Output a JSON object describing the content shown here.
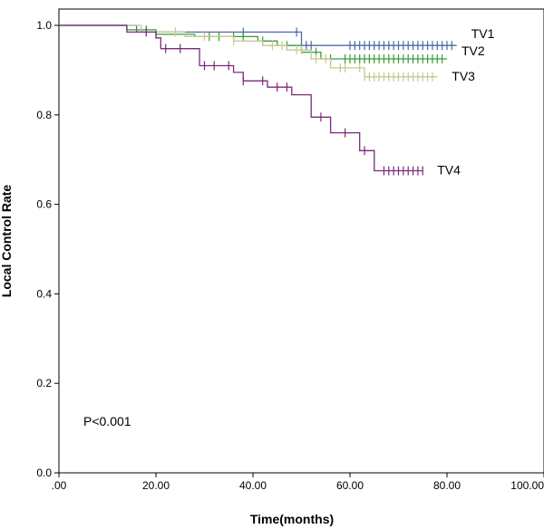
{
  "chart_data": {
    "type": "line",
    "subtype": "kaplan-meier-step",
    "title": "",
    "xlabel": "Time(months)",
    "ylabel": "Local Control Rate",
    "xlim": [
      0,
      100
    ],
    "ylim": [
      0,
      1.0
    ],
    "x_ticks": [
      0,
      20,
      40,
      60,
      80,
      100
    ],
    "x_tick_labels": [
      ".00",
      "20.00",
      "40.00",
      "60.00",
      "80.00",
      "100.00"
    ],
    "y_ticks": [
      0,
      0.2,
      0.4,
      0.6,
      0.8,
      1.0
    ],
    "y_tick_labels": [
      "0.0",
      "0.2",
      "0.4",
      "0.6",
      "0.8",
      "1.0"
    ],
    "grid": false,
    "annotation": "P<0.001",
    "series": [
      {
        "name": "TV1",
        "color": "#4a6aa5",
        "steps": [
          [
            0,
            1.0
          ],
          [
            16,
            1.0
          ],
          [
            16,
            0.985
          ],
          [
            50,
            0.985
          ],
          [
            50,
            0.955
          ],
          [
            82,
            0.955
          ]
        ],
        "censor_x": [
          38,
          49,
          51,
          52,
          60,
          61,
          62,
          63,
          64,
          65,
          66,
          67,
          68,
          69,
          70,
          71,
          72,
          73,
          74,
          75,
          76,
          77,
          78,
          79,
          80,
          81
        ]
      },
      {
        "name": "TV2",
        "color": "#3a9a3a",
        "steps": [
          [
            0,
            1.0
          ],
          [
            14,
            1.0
          ],
          [
            14,
            0.99
          ],
          [
            20,
            0.99
          ],
          [
            20,
            0.98
          ],
          [
            28,
            0.98
          ],
          [
            28,
            0.975
          ],
          [
            41,
            0.975
          ],
          [
            41,
            0.965
          ],
          [
            45,
            0.965
          ],
          [
            45,
            0.955
          ],
          [
            50,
            0.955
          ],
          [
            50,
            0.94
          ],
          [
            54,
            0.94
          ],
          [
            54,
            0.925
          ],
          [
            80,
            0.925
          ]
        ],
        "censor_x": [
          18,
          20,
          31,
          33,
          36,
          38,
          42,
          47,
          53,
          56,
          59,
          60,
          61,
          62,
          63,
          64,
          65,
          66,
          67,
          68,
          69,
          70,
          71,
          72,
          73,
          74,
          75,
          76,
          77,
          78,
          79
        ]
      },
      {
        "name": "TV3",
        "color": "#c8c890",
        "steps": [
          [
            0,
            1.0
          ],
          [
            17,
            1.0
          ],
          [
            17,
            0.985
          ],
          [
            26,
            0.985
          ],
          [
            26,
            0.975
          ],
          [
            36,
            0.975
          ],
          [
            36,
            0.965
          ],
          [
            42,
            0.965
          ],
          [
            42,
            0.955
          ],
          [
            47,
            0.955
          ],
          [
            47,
            0.945
          ],
          [
            52,
            0.945
          ],
          [
            52,
            0.925
          ],
          [
            56,
            0.925
          ],
          [
            56,
            0.905
          ],
          [
            63,
            0.905
          ],
          [
            63,
            0.885
          ],
          [
            78,
            0.885
          ]
        ],
        "censor_x": [
          18,
          24,
          30,
          36,
          44,
          46,
          49,
          50,
          53,
          55,
          58,
          59,
          62,
          63,
          64,
          65,
          66,
          67,
          68,
          69,
          70,
          71,
          72,
          73,
          74,
          75,
          76,
          77
        ]
      },
      {
        "name": "TV4",
        "color": "#7a2a7a",
        "steps": [
          [
            0,
            1.0
          ],
          [
            14,
            1.0
          ],
          [
            14,
            0.985
          ],
          [
            20,
            0.985
          ],
          [
            20,
            0.972
          ],
          [
            21,
            0.972
          ],
          [
            21,
            0.948
          ],
          [
            29,
            0.948
          ],
          [
            29,
            0.91
          ],
          [
            36,
            0.91
          ],
          [
            36,
            0.895
          ],
          [
            38,
            0.895
          ],
          [
            38,
            0.876
          ],
          [
            43,
            0.876
          ],
          [
            43,
            0.862
          ],
          [
            48,
            0.862
          ],
          [
            48,
            0.845
          ],
          [
            52,
            0.845
          ],
          [
            52,
            0.795
          ],
          [
            56,
            0.795
          ],
          [
            56,
            0.76
          ],
          [
            62,
            0.76
          ],
          [
            62,
            0.72
          ],
          [
            65,
            0.72
          ],
          [
            65,
            0.675
          ],
          [
            75,
            0.675
          ]
        ],
        "censor_x": [
          18,
          22,
          25,
          30,
          32,
          35,
          38,
          42,
          45,
          47,
          54,
          59,
          63,
          67,
          68,
          69,
          70,
          71,
          72,
          73,
          74,
          75
        ]
      }
    ]
  }
}
